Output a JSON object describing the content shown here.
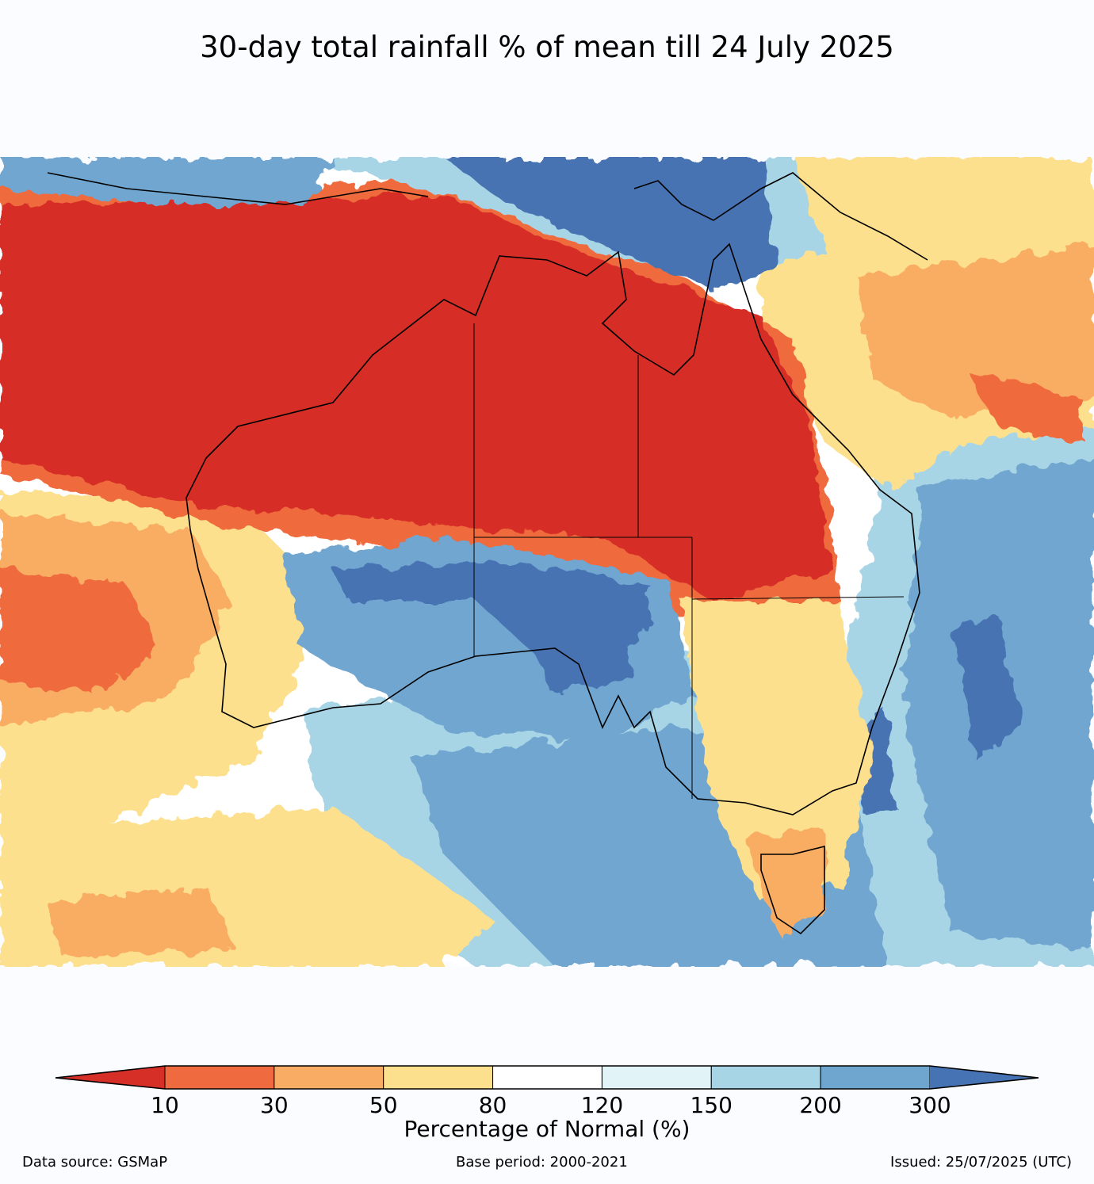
{
  "title": "30-day total rainfall % of mean till 24 July 2025",
  "colors": {
    "c_lt10": "#d62f27",
    "c_10_30": "#ef6a3e",
    "c_30_50": "#f9ad64",
    "c_50_80": "#fde08e",
    "c_80_120": "#ffffff",
    "c_120_150": "#e1f3f7",
    "c_150_200": "#a8d5e6",
    "c_200_300": "#6fa6cf",
    "c_gt300": "#4673b3"
  },
  "colorbar": {
    "ticks": [
      "10",
      "30",
      "50",
      "80",
      "120",
      "150",
      "200",
      "300"
    ],
    "label": "Percentage of Normal (%)"
  },
  "footer": {
    "source": "Data source: GSMaP",
    "base_period": "Base period: 2000-2021",
    "issued": "Issued: 25/07/2025 (UTC)"
  }
}
